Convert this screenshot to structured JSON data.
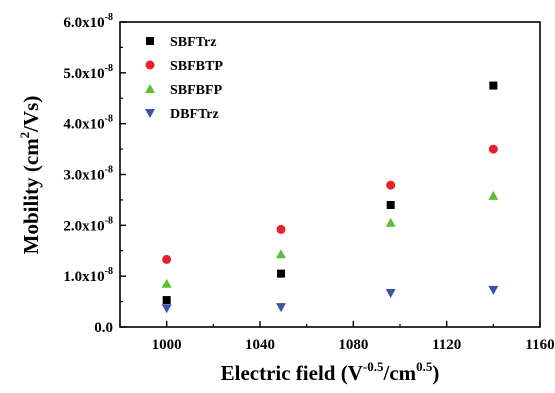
{
  "chart_data": {
    "type": "scatter",
    "xlabel": {
      "main": "Electric field (V",
      "sup1": "-0.5",
      "mid": "/cm",
      "sup2": "0.5",
      "end": ")"
    },
    "ylabel": {
      "main": "Mobility (cm",
      "sup": "2",
      "end": "/Vs)"
    },
    "xlim": [
      980,
      1160
    ],
    "ylim": [
      0,
      6e-08
    ],
    "x_ticks": [
      1000,
      1040,
      1080,
      1120,
      1160
    ],
    "y_ticks": [
      {
        "value": 0,
        "mantissa": "0.0",
        "exp": ""
      },
      {
        "value": 1e-08,
        "mantissa": "1.0x10",
        "exp": "-8"
      },
      {
        "value": 2e-08,
        "mantissa": "2.0x10",
        "exp": "-8"
      },
      {
        "value": 3e-08,
        "mantissa": "3.0x10",
        "exp": "-8"
      },
      {
        "value": 4e-08,
        "mantissa": "4.0x10",
        "exp": "-8"
      },
      {
        "value": 5e-08,
        "mantissa": "5.0x10",
        "exp": "-8"
      },
      {
        "value": 6e-08,
        "mantissa": "6.0x10",
        "exp": "-8"
      }
    ],
    "legend_position": "top-left",
    "grid": false,
    "series": [
      {
        "name": "SBFTrz",
        "marker": "square",
        "color": "#000000",
        "x": [
          1000,
          1049,
          1096,
          1140
        ],
        "y": [
          5.3e-09,
          1.05e-08,
          2.4e-08,
          4.75e-08
        ]
      },
      {
        "name": "SBFBTP",
        "marker": "circle",
        "color": "#e8222a",
        "x": [
          1000,
          1049,
          1096,
          1140
        ],
        "y": [
          1.33e-08,
          1.92e-08,
          2.79e-08,
          3.5e-08
        ]
      },
      {
        "name": "SBFBFP",
        "marker": "triangle-up",
        "color": "#5bbf3a",
        "x": [
          1000,
          1049,
          1096,
          1140
        ],
        "y": [
          8.5e-09,
          1.43e-08,
          2.05e-08,
          2.58e-08
        ]
      },
      {
        "name": "DBFTrz",
        "marker": "triangle-down",
        "color": "#3a55a8",
        "x": [
          1000,
          1049,
          1096,
          1140
        ],
        "y": [
          3.7e-09,
          3.9e-09,
          6.7e-09,
          7.3e-09
        ]
      }
    ]
  }
}
